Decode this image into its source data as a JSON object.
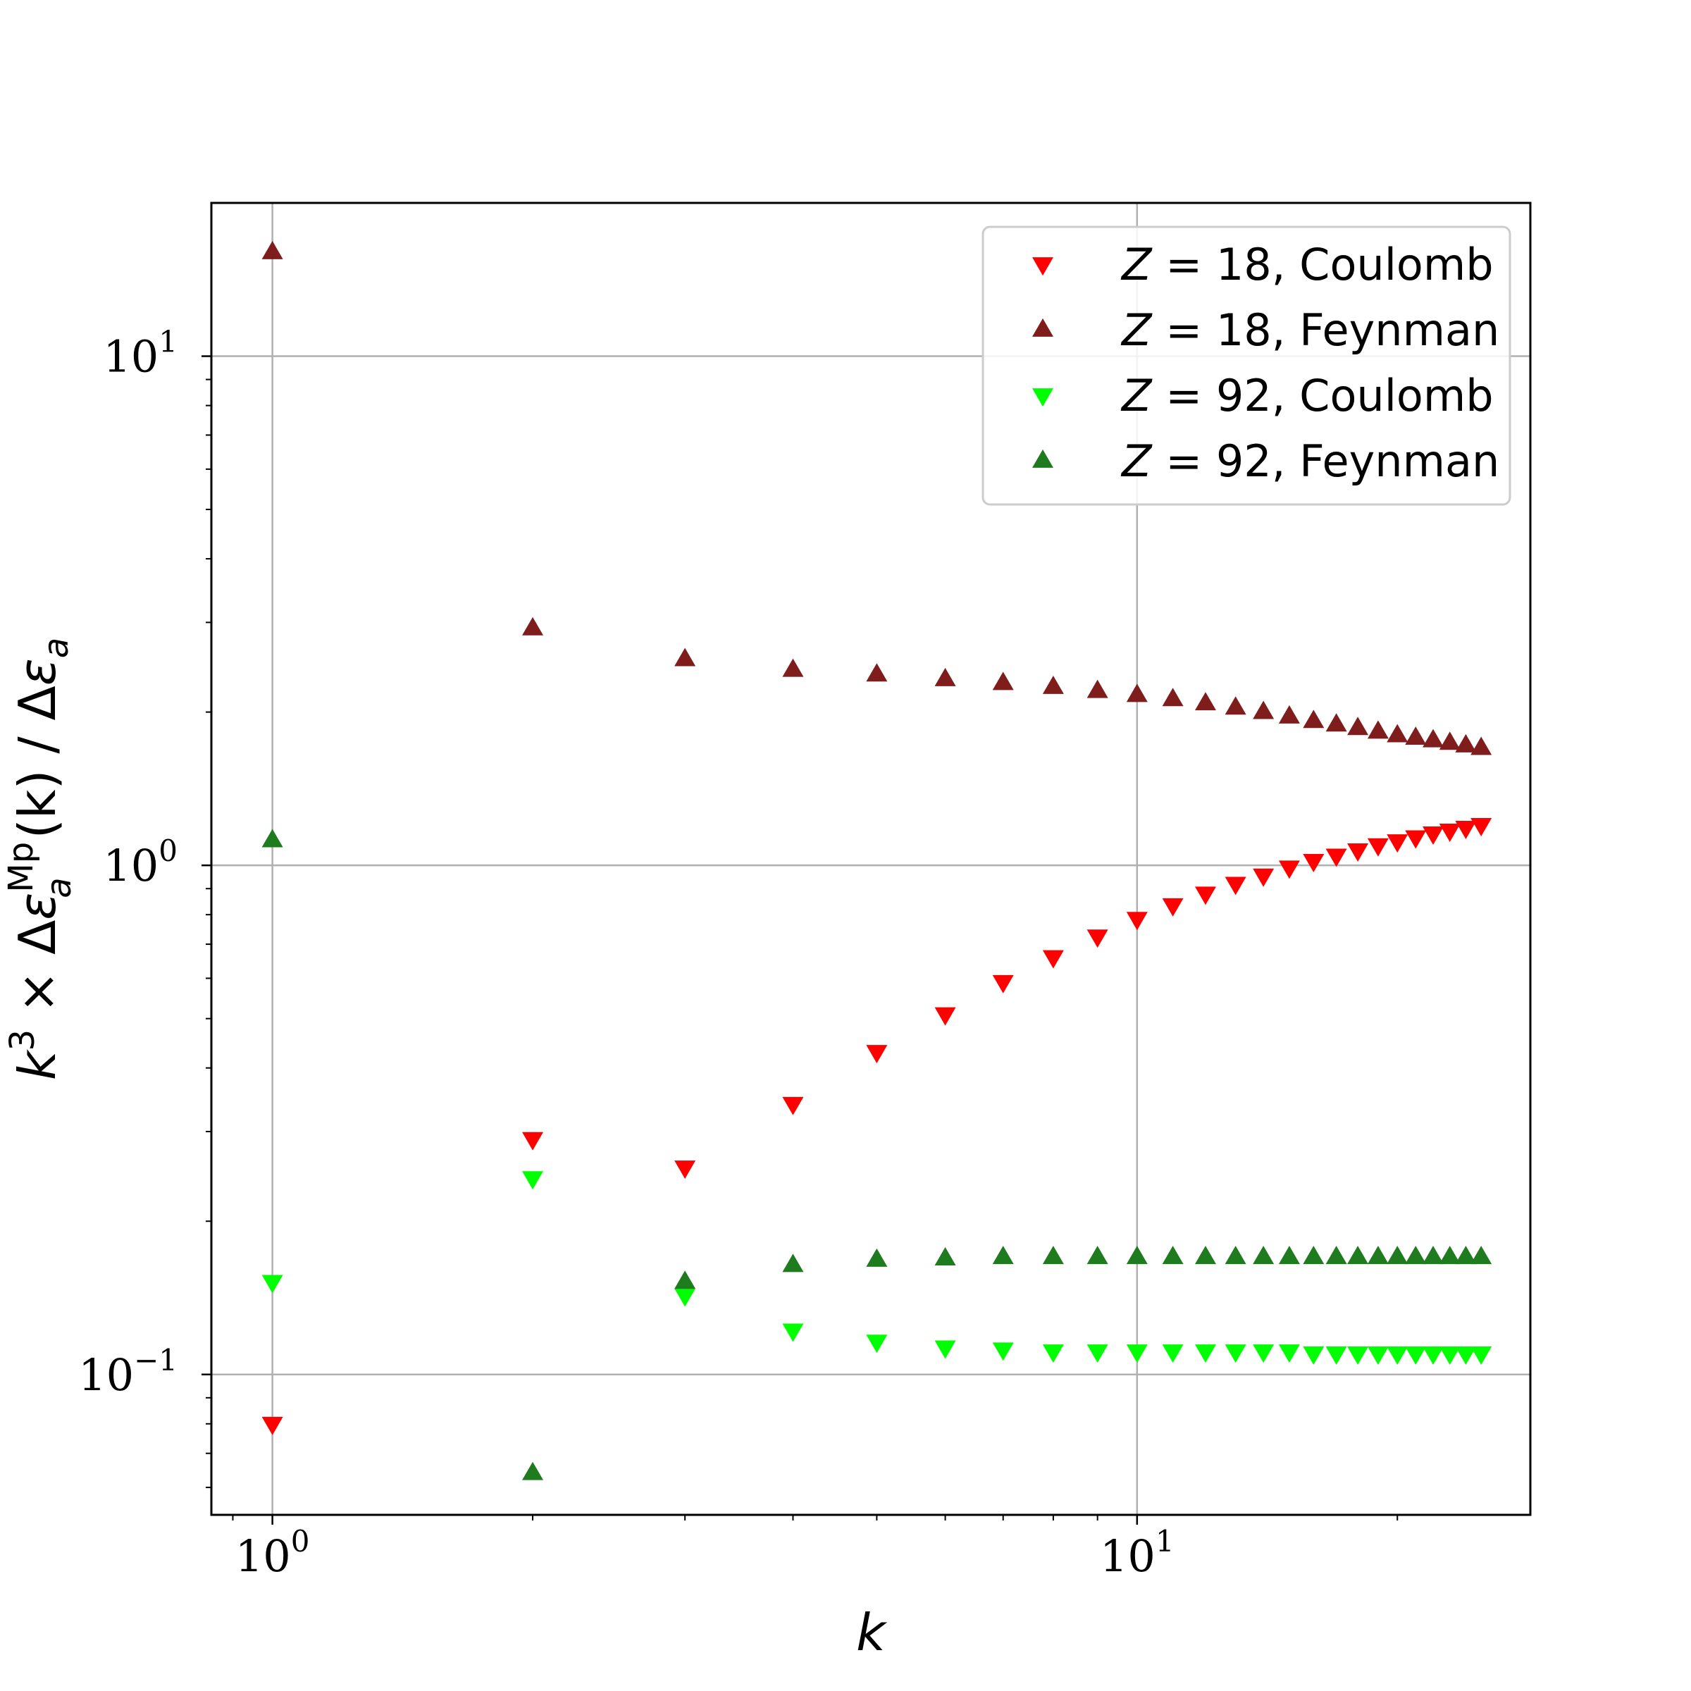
{
  "chart_data": {
    "type": "scatter",
    "title": "",
    "xlabel": "k",
    "ylabel": {
      "k": "k",
      "exp3": "3",
      "times": " × Δ",
      "eps": "ε",
      "sub_a": "a",
      "sup_mp": "Mp",
      "paren": "(k)",
      "slash": " / Δ",
      "eps2": "ε",
      "sub_a2": "a"
    },
    "xscale": "log",
    "yscale": "log",
    "xlim": [
      0.85,
      28.5
    ],
    "ylim": [
      0.053,
      20
    ],
    "grid": true,
    "legend_position": "top-right",
    "x_ticks": [
      {
        "base": "10",
        "exp": "0",
        "value": 1
      },
      {
        "base": "10",
        "exp": "1",
        "value": 10
      }
    ],
    "y_ticks": [
      {
        "base": "10",
        "exp": "−1",
        "value": 0.1
      },
      {
        "base": "10",
        "exp": "0",
        "value": 1
      },
      {
        "base": "10",
        "exp": "1",
        "value": 10
      }
    ],
    "series": [
      {
        "name": {
          "z": "Z",
          "eq": " = 18, ",
          "label": "Coulomb"
        },
        "marker": "triangle-down",
        "color": "#ff0000",
        "x": [
          1,
          2,
          3,
          4,
          5,
          6,
          7,
          8,
          9,
          10,
          11,
          12,
          13,
          14,
          15,
          16,
          17,
          18,
          19,
          20,
          21,
          22,
          23,
          24,
          25
        ],
        "y": [
          0.08,
          0.29,
          0.255,
          0.34,
          0.43,
          0.51,
          0.59,
          0.66,
          0.725,
          0.785,
          0.835,
          0.88,
          0.92,
          0.955,
          0.99,
          1.02,
          1.045,
          1.07,
          1.095,
          1.115,
          1.135,
          1.155,
          1.17,
          1.185,
          1.2
        ]
      },
      {
        "name": {
          "z": "Z",
          "eq": " = 18, ",
          "label": "Feynman"
        },
        "marker": "triangle-up",
        "color": "#7f1d1d",
        "x": [
          1,
          2,
          3,
          4,
          5,
          6,
          7,
          8,
          9,
          10,
          11,
          12,
          13,
          14,
          15,
          16,
          17,
          18,
          19,
          20,
          21,
          22,
          23,
          24,
          25
        ],
        "y": [
          16.0,
          2.92,
          2.54,
          2.42,
          2.37,
          2.32,
          2.28,
          2.24,
          2.2,
          2.16,
          2.12,
          2.08,
          2.04,
          2.0,
          1.96,
          1.92,
          1.89,
          1.86,
          1.83,
          1.8,
          1.78,
          1.76,
          1.74,
          1.72,
          1.7
        ]
      },
      {
        "name": {
          "z": "Z",
          "eq": " = 92, ",
          "label": "Coulomb"
        },
        "marker": "triangle-down",
        "color": "#00ff00",
        "x": [
          1,
          2,
          3,
          4,
          5,
          6,
          7,
          8,
          9,
          10,
          11,
          12,
          13,
          14,
          15,
          16,
          17,
          18,
          19,
          20,
          21,
          22,
          23,
          24,
          25
        ],
        "y": [
          0.152,
          0.243,
          0.143,
          0.122,
          0.116,
          0.113,
          0.112,
          0.111,
          0.111,
          0.111,
          0.111,
          0.111,
          0.111,
          0.111,
          0.111,
          0.11,
          0.11,
          0.11,
          0.11,
          0.11,
          0.11,
          0.11,
          0.11,
          0.11,
          0.11
        ]
      },
      {
        "name": {
          "z": "Z",
          "eq": " = 92, ",
          "label": "Feynman"
        },
        "marker": "triangle-up",
        "color": "#1e7b1e",
        "x": [
          1,
          2,
          3,
          4,
          5,
          6,
          7,
          8,
          9,
          10,
          11,
          12,
          13,
          14,
          15,
          16,
          17,
          18,
          19,
          20,
          21,
          22,
          23,
          24,
          25
        ],
        "y": [
          1.12,
          0.064,
          0.152,
          0.164,
          0.168,
          0.169,
          0.17,
          0.17,
          0.17,
          0.17,
          0.17,
          0.17,
          0.17,
          0.17,
          0.17,
          0.17,
          0.17,
          0.17,
          0.17,
          0.17,
          0.17,
          0.17,
          0.17,
          0.17,
          0.17
        ]
      }
    ]
  }
}
